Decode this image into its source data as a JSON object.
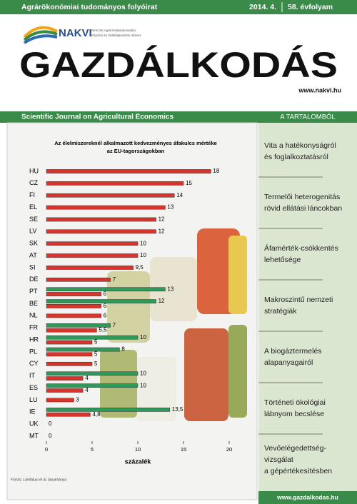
{
  "header": {
    "tagline": "Agrárökonómiai tudományos folyóirat",
    "issue": "2014. 4.",
    "volume": "58. évfolyam",
    "logo": "NAKVI",
    "logo_text": [
      "Nemzeti Agrárszaktanácsadási,",
      "Képzési és Vidékfejlesztési Intézet"
    ],
    "title": "GAZDÁLKODÁS",
    "url": "www.nakvi.hu",
    "subtitle": "Scientific Journal on Agricultural Economics",
    "contents_title": "A TARTALOMBÓL"
  },
  "chart_data": {
    "type": "bar",
    "orientation": "horizontal",
    "title": [
      "Az élelmiszereknél alkalmazott kedvezményes áfakulcs mértéke",
      "az EU-tagországokban"
    ],
    "categories": [
      "HU",
      "CZ",
      "FI",
      "EL",
      "SE",
      "LV",
      "SK",
      "AT",
      "SI",
      "DE",
      "PT",
      "BE",
      "NL",
      "FR",
      "HR",
      "PL",
      "CY",
      "IT",
      "ES",
      "LU",
      "IE",
      "UK",
      "MT"
    ],
    "series": [
      {
        "color": "#d9342b",
        "values": [
          18,
          15,
          14,
          13,
          12,
          12,
          10,
          10,
          9.5,
          7,
          6,
          6,
          6,
          5.5,
          5,
          5,
          5,
          4,
          4,
          3,
          4.8,
          0,
          0
        ],
        "value_labels": [
          "18",
          "15",
          "14",
          "13",
          "12",
          "12",
          "10",
          "10",
          "9,5",
          "7",
          "6",
          "6",
          "6",
          "5,5",
          "5",
          "5",
          "5",
          "4",
          "4",
          "3",
          "4,8",
          "0",
          "0"
        ]
      },
      {
        "color": "#2e9a5a",
        "values": [
          null,
          null,
          null,
          null,
          null,
          null,
          null,
          null,
          null,
          null,
          13,
          12,
          null,
          7,
          10,
          8,
          null,
          10,
          10,
          null,
          13.5,
          null,
          null
        ],
        "value_labels": [
          null,
          null,
          null,
          null,
          null,
          null,
          null,
          null,
          null,
          null,
          "13",
          "12",
          null,
          "7",
          "10",
          "8",
          null,
          "10",
          "10",
          null,
          "13,5",
          null,
          null
        ]
      }
    ],
    "xlim": [
      0,
      20
    ],
    "xticks": [
      0,
      5,
      10,
      15,
      20
    ],
    "xlabel": "százalék",
    "source": "Forrás: Lámfalusi et al. tanulmánya"
  },
  "sidebar": {
    "items": [
      [
        "Vita a hatékonyságról",
        "és foglalkoztatásról"
      ],
      [
        "Termelői heterogenitás",
        "rövid ellátási láncokban"
      ],
      [
        "Áfamérték-csökkentés",
        "lehetősége"
      ],
      [
        "Makroszintű nemzeti",
        "stratégiák"
      ],
      [
        "A biogáztermelés",
        "alapanyagairól"
      ],
      [
        "Történeti ökológiai",
        "lábnyom becslése"
      ],
      [
        "Vevőelégedettség-",
        "vizsgálat",
        "a gépértékesítésben"
      ]
    ]
  },
  "footer": {
    "url": "www.gazdalkodas.hu"
  }
}
